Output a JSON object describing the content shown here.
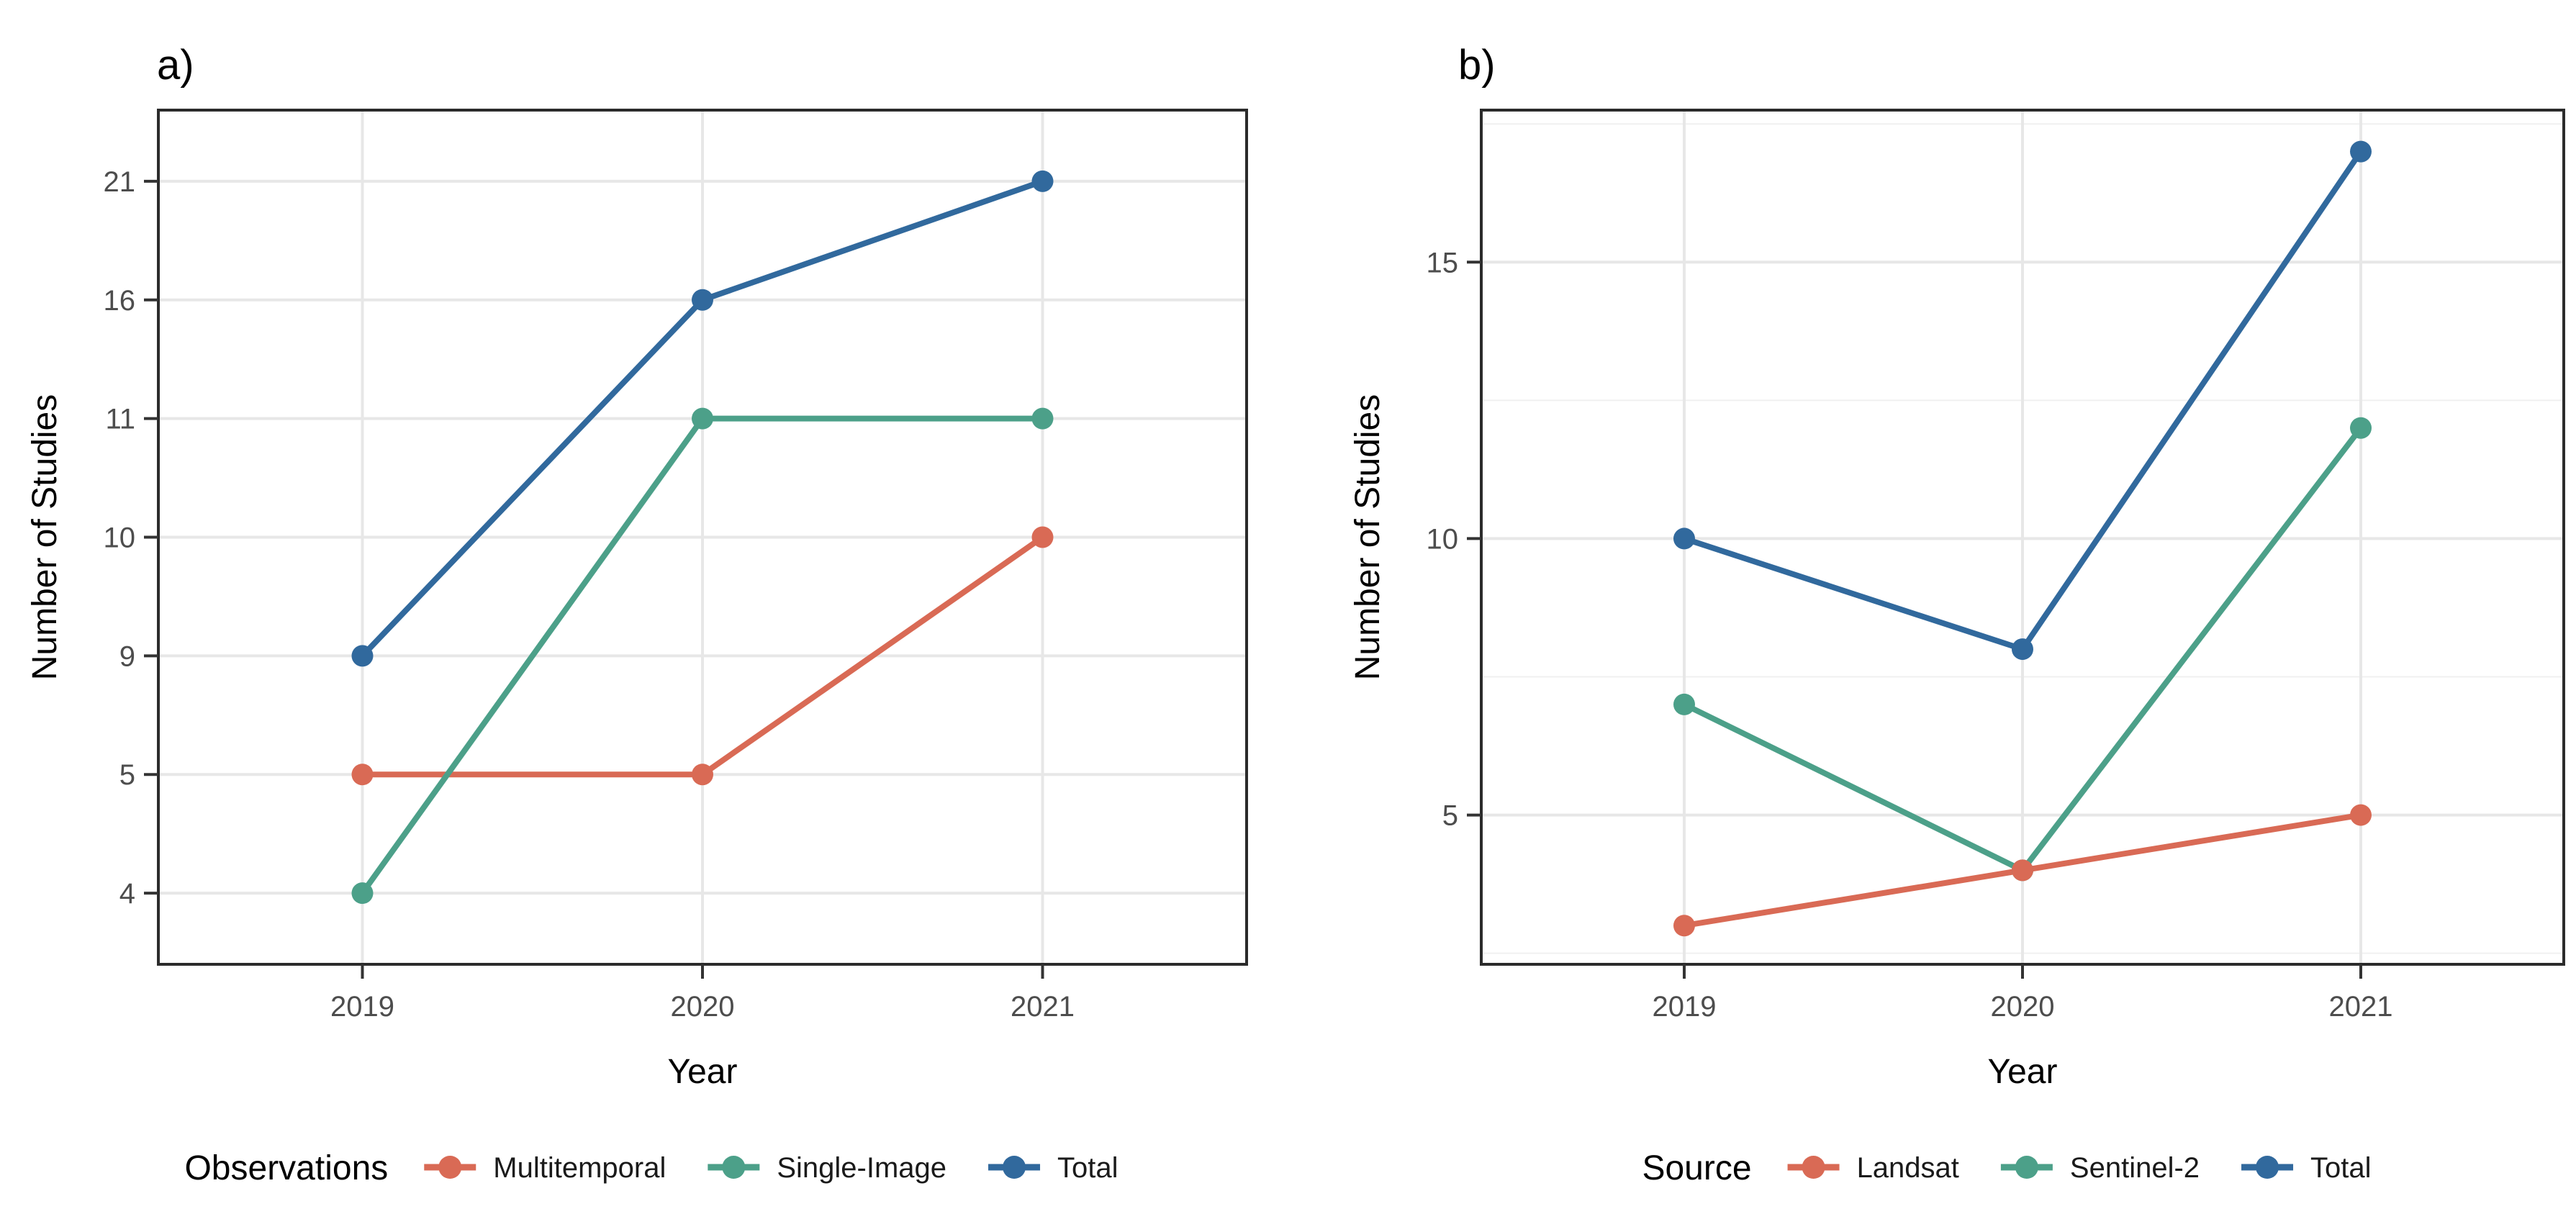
{
  "figure": {
    "background": "#ffffff"
  },
  "colors": {
    "red": "#D96A55",
    "teal": "#4CA089",
    "blue": "#31699D",
    "grid_major": "#e7e7e7",
    "grid_minor": "#f0f0f0",
    "panel_border": "#2b2b2b",
    "tick_label": "#4d4d4d"
  },
  "chart_data": [
    {
      "id": "a",
      "type": "line",
      "title": "a)",
      "xlabel": "Year",
      "ylabel": "Number of Studies",
      "categories": [
        "2019",
        "2020",
        "2021"
      ],
      "y_axis": {
        "mode": "rank",
        "ticks_top_to_bottom": [
          21,
          16,
          11,
          10,
          9,
          5,
          4
        ],
        "note": "ticks are the unique data values, equally spaced (discrete-like scale)"
      },
      "grid": true,
      "legend": {
        "title": "Observations",
        "position": "bottom"
      },
      "series": [
        {
          "name": "Multitemporal",
          "color": "#D96A55",
          "values": [
            5,
            5,
            10
          ]
        },
        {
          "name": "Single-Image",
          "color": "#4CA089",
          "values": [
            4,
            11,
            11
          ]
        },
        {
          "name": "Total",
          "color": "#31699D",
          "values": [
            9,
            16,
            21
          ]
        }
      ]
    },
    {
      "id": "b",
      "type": "line",
      "title": "b)",
      "xlabel": "Year",
      "ylabel": "Number of Studies",
      "categories": [
        "2019",
        "2020",
        "2021"
      ],
      "y_axis": {
        "mode": "linear",
        "domain": [
          2.3,
          17.75
        ],
        "major_ticks": [
          15,
          10,
          5
        ],
        "minor_ticks": [
          17.5,
          12.5,
          7.5,
          2.5
        ]
      },
      "grid": true,
      "legend": {
        "title": "Source",
        "position": "bottom"
      },
      "series": [
        {
          "name": "Landsat",
          "color": "#D96A55",
          "values": [
            3,
            4,
            5
          ]
        },
        {
          "name": "Sentinel-2",
          "color": "#4CA089",
          "values": [
            7,
            4,
            12
          ]
        },
        {
          "name": "Total",
          "color": "#31699D",
          "values": [
            10,
            8,
            17
          ]
        }
      ]
    }
  ]
}
